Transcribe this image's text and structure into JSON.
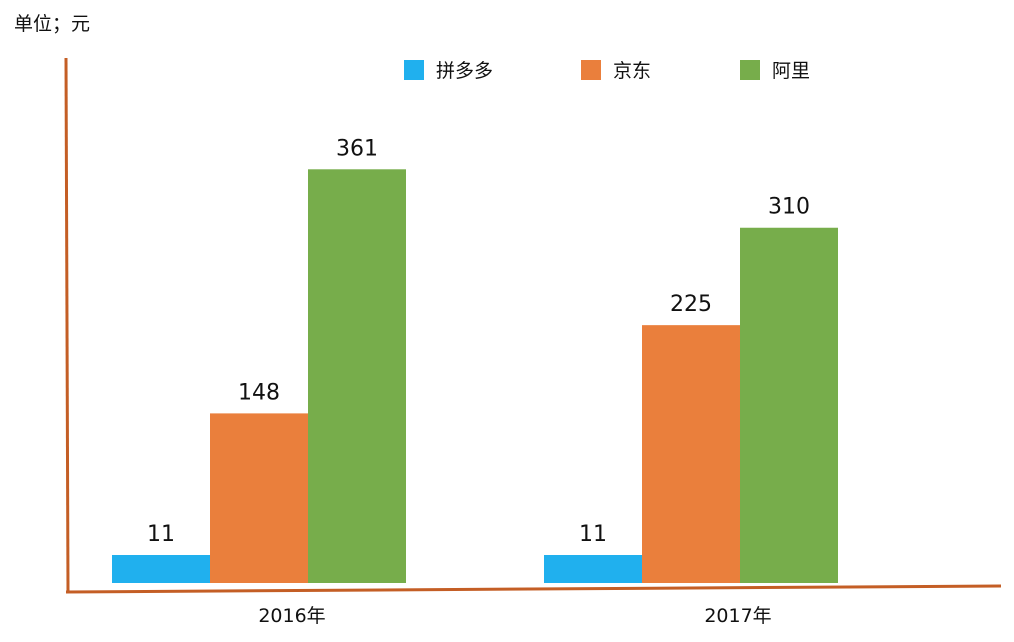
{
  "chart_data": {
    "type": "bar",
    "unit_label": "单位；元",
    "categories": [
      "2016年",
      "2017年"
    ],
    "series": [
      {
        "name": "拼多多",
        "values": [
          11,
          11
        ],
        "color": "#20B0EE"
      },
      {
        "name": "京东",
        "values": [
          148,
          225
        ],
        "color": "#EA7F3C"
      },
      {
        "name": "阿里",
        "values": [
          361,
          310
        ],
        "color": "#77AD4B"
      }
    ],
    "data_labels": [
      [
        "11",
        "11"
      ],
      [
        "148",
        "225"
      ],
      [
        "361",
        "310"
      ]
    ],
    "axis_color": "#C45E25",
    "legend_position": "top",
    "grid": false
  }
}
